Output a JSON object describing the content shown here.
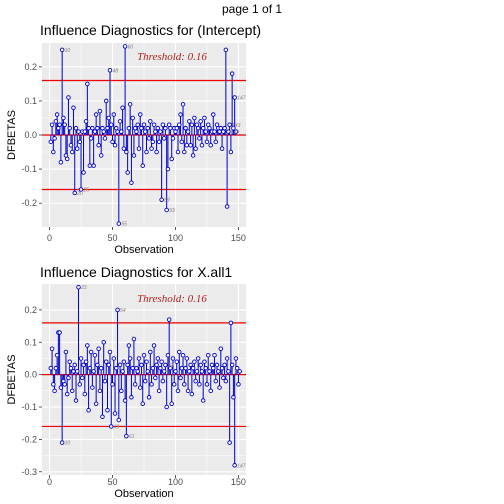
{
  "page_label": "page 1 of 1",
  "colors": {
    "panel_bg": "#ebebeb",
    "grid": "#ffffff",
    "stem": "#0000cd",
    "threshold_line": "#ee0000",
    "threshold_text": "#b22222",
    "point_label": "#8b7d6b"
  },
  "chart_data": [
    {
      "type": "scatter",
      "title": "Influence Diagnostics for (Intercept)",
      "xlabel": "Observation",
      "ylabel": "DFBETAS",
      "xlim": [
        -6,
        156
      ],
      "ylim": [
        -0.27,
        0.27
      ],
      "xticks": [
        0,
        50,
        100,
        150
      ],
      "yticks": [
        -0.2,
        -0.1,
        0.0,
        0.1,
        0.2
      ],
      "ytick_labels": [
        "-0.2",
        "-0.1",
        "0.0",
        "0.1",
        "0.2"
      ],
      "threshold": 0.16,
      "threshold_label": "Threshold: 0.16",
      "grid": true,
      "values": [
        -0.02,
        0.03,
        -0.05,
        -0.01,
        0.04,
        0.06,
        0.02,
        0.03,
        -0.08,
        0.25,
        0.05,
        0.03,
        -0.06,
        -0.07,
        0.11,
        0.02,
        -0.03,
        -0.05,
        0.08,
        -0.17,
        0.02,
        -0.04,
        0.01,
        -0.02,
        -0.16,
        0.01,
        -0.11,
        0.01,
        0.04,
        0.15,
        0.02,
        -0.09,
        -0.01,
        0.02,
        -0.09,
        0.01,
        0.06,
        0.02,
        -0.03,
        0.07,
        -0.06,
        0.02,
        0.01,
        -0.01,
        0.1,
        0.02,
        0.05,
        0.19,
        0.03,
        -0.02,
        0.06,
        -0.03,
        0.02,
        0.01,
        -0.26,
        0.04,
        0.01,
        0.08,
        -0.04,
        0.26,
        -0.05,
        -0.11,
        0.02,
        0.09,
        -0.14,
        0.05,
        -0.06,
        0.02,
        0.01,
        0.03,
        -0.04,
        0.06,
        0.02,
        -0.09,
        0.03,
        0.01,
        -0.05,
        0.02,
        -0.01,
        0.04,
        -0.04,
        -0.02,
        0.03,
        0.01,
        -0.05,
        0.02,
        -0.02,
        0.01,
        -0.19,
        0.03,
        -0.01,
        0.02,
        -0.22,
        -0.1,
        0.03,
        0.02,
        -0.07,
        -0.01,
        0.02,
        0.01,
        0.02,
        -0.05,
        0.03,
        0.06,
        -0.02,
        0.09,
        -0.05,
        0.02,
        -0.03,
        0.01,
        0.04,
        -0.03,
        0.03,
        -0.06,
        0.05,
        -0.04,
        0.03,
        0.02,
        -0.01,
        0.04,
        -0.03,
        0.02,
        0.05,
        0.01,
        -0.02,
        0.03,
        0.02,
        -0.03,
        0.01,
        0.06,
        0.01,
        -0.02,
        0.03,
        0.02,
        0.01,
        0.02,
        -0.04,
        0.01,
        0.02,
        0.25,
        -0.21,
        0.01,
        0.03,
        -0.05,
        0.18,
        0.02,
        0.11,
        0.01
      ],
      "labeled_points": [
        {
          "x": 10,
          "label": "10"
        },
        {
          "x": 20,
          "label": "20"
        },
        {
          "x": 25,
          "label": "25"
        },
        {
          "x": 48,
          "label": "48"
        },
        {
          "x": 55,
          "label": "55"
        },
        {
          "x": 60,
          "label": "60"
        },
        {
          "x": 89,
          "label": "89"
        },
        {
          "x": 93,
          "label": "93"
        },
        {
          "x": 142,
          "label": "139"
        },
        {
          "x": 143,
          "label": "143"
        },
        {
          "x": 147,
          "label": "147"
        }
      ]
    },
    {
      "type": "scatter",
      "title": "Influence Diagnostics for X.all1",
      "xlabel": "Observation",
      "ylabel": "DFBETAS",
      "xlim": [
        -6,
        156
      ],
      "ylim": [
        -0.31,
        0.28
      ],
      "xticks": [
        0,
        50,
        100,
        150
      ],
      "yticks": [
        -0.3,
        -0.2,
        -0.1,
        0.0,
        0.1,
        0.2
      ],
      "ytick_labels": [
        "-0.3",
        "-0.2",
        "-0.1",
        "0.0",
        "0.1",
        "0.2"
      ],
      "threshold": 0.16,
      "threshold_label": "Threshold: 0.16",
      "grid": true,
      "values": [
        0.02,
        0.08,
        -0.03,
        -0.05,
        0.02,
        0.06,
        0.13,
        0.13,
        -0.04,
        -0.21,
        -0.02,
        -0.03,
        0.07,
        -0.06,
        -0.01,
        0.04,
        0.02,
        -0.05,
        0.01,
        0.03,
        -0.08,
        0.01,
        0.27,
        -0.03,
        0.05,
        -0.01,
        0.03,
        -0.06,
        0.04,
        0.09,
        -0.11,
        0.02,
        0.07,
        -0.04,
        0.01,
        0.06,
        -0.09,
        0.03,
        0.08,
        -0.05,
        0.02,
        -0.13,
        0.1,
        -0.02,
        0.04,
        -0.11,
        0.03,
        0.07,
        -0.16,
        -0.03,
        0.05,
        -0.12,
        0.02,
        0.2,
        -0.14,
        0.03,
        -0.05,
        0.01,
        0.04,
        -0.08,
        -0.19,
        0.03,
        0.09,
        0.05,
        -0.07,
        0.02,
        0.11,
        -0.03,
        0.02,
        0.01,
        0.05,
        -0.04,
        0.03,
        -0.09,
        0.06,
        -0.02,
        0.04,
        0.01,
        -0.07,
        0.07,
        -0.03,
        0.02,
        0.09,
        -0.01,
        0.03,
        0.05,
        -0.05,
        0.02,
        0.04,
        -0.02,
        0.01,
        0.03,
        -0.1,
        0.06,
        0.17,
        0.02,
        -0.09,
        0.05,
        -0.03,
        0.01,
        0.04,
        -0.05,
        0.07,
        -0.01,
        0.02,
        0.06,
        -0.03,
        0.02,
        0.05,
        -0.05,
        0.01,
        0.03,
        -0.06,
        0.02,
        0.04,
        -0.02,
        0.01,
        0.05,
        -0.03,
        0.03,
        0.01,
        -0.08,
        0.04,
        0.02,
        -0.03,
        0.06,
        0.01,
        -0.05,
        0.03,
        0.02,
        0.06,
        -0.02,
        0.03,
        0.01,
        -0.04,
        0.08,
        0.02,
        -0.01,
        0.03,
        -0.02,
        0.05,
        0.01,
        -0.21,
        0.16,
        0.03,
        -0.07,
        -0.28,
        0.05,
        0.02,
        -0.03,
        0.01
      ],
      "labeled_points": [
        {
          "x": 10,
          "label": "10"
        },
        {
          "x": 23,
          "label": "23"
        },
        {
          "x": 49,
          "label": "49"
        },
        {
          "x": 54,
          "label": "54"
        },
        {
          "x": 61,
          "label": "61"
        },
        {
          "x": 92,
          "label": "92"
        },
        {
          "x": 142,
          "label": "139"
        },
        {
          "x": 147,
          "label": "147"
        }
      ]
    }
  ]
}
